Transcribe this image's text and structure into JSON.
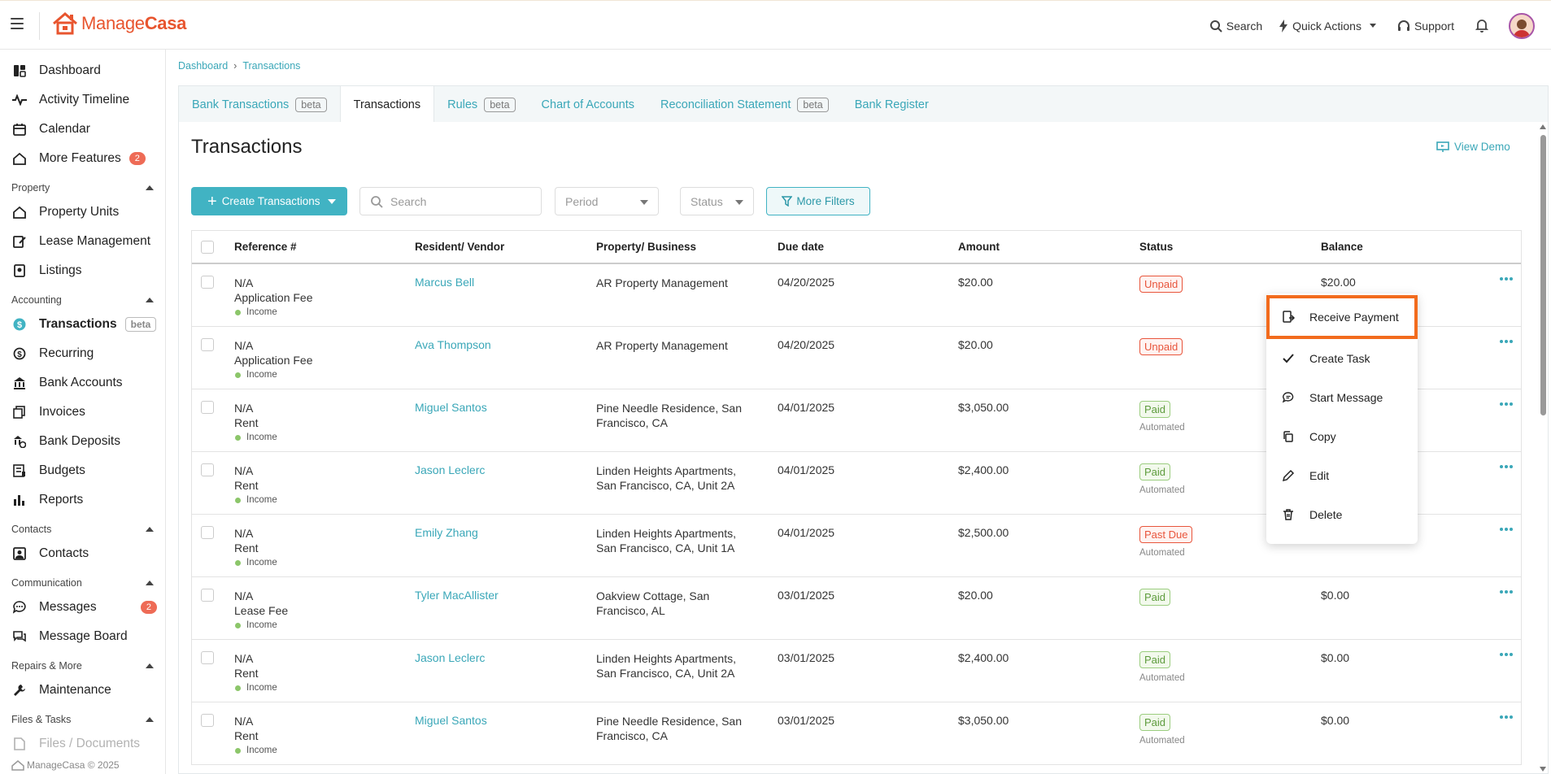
{
  "app": {
    "logo_text_a": "Manage",
    "logo_text_b": "Casa"
  },
  "topbar": {
    "search_label": "Search",
    "quick_actions_label": "Quick Actions",
    "support_label": "Support"
  },
  "sidebar": {
    "top_items": [
      {
        "label": "Dashboard",
        "icon": "dashboard-icon"
      },
      {
        "label": "Activity Timeline",
        "icon": "activity-icon"
      },
      {
        "label": "Calendar",
        "icon": "calendar-icon"
      },
      {
        "label": "More Features",
        "icon": "home-icon",
        "badge": "2"
      }
    ],
    "sections": [
      {
        "title": "Property",
        "items": [
          {
            "label": "Property Units",
            "icon": "home-icon"
          },
          {
            "label": "Lease Management",
            "icon": "edit-icon"
          },
          {
            "label": "Listings",
            "icon": "listing-icon"
          }
        ]
      },
      {
        "title": "Accounting",
        "items": [
          {
            "label": "Transactions",
            "icon": "dollar-circle-icon",
            "beta": "beta"
          },
          {
            "label": "Recurring",
            "icon": "recurring-icon"
          },
          {
            "label": "Bank Accounts",
            "icon": "bank-icon"
          },
          {
            "label": "Invoices",
            "icon": "invoice-icon"
          },
          {
            "label": "Bank Deposits",
            "icon": "deposit-icon"
          },
          {
            "label": "Budgets",
            "icon": "budget-icon"
          },
          {
            "label": "Reports",
            "icon": "reports-icon"
          }
        ]
      },
      {
        "title": "Contacts",
        "items": [
          {
            "label": "Contacts",
            "icon": "contacts-icon"
          }
        ]
      },
      {
        "title": "Communication",
        "items": [
          {
            "label": "Messages",
            "icon": "message-icon",
            "badge": "2"
          },
          {
            "label": "Message Board",
            "icon": "board-icon"
          }
        ]
      },
      {
        "title": "Repairs & More",
        "items": [
          {
            "label": "Maintenance",
            "icon": "wrench-icon"
          }
        ]
      },
      {
        "title": "Files & Tasks",
        "items": [
          {
            "label": "Files / Documents",
            "icon": "file-icon"
          }
        ]
      }
    ],
    "footer": "ManageCasa © 2025"
  },
  "breadcrumb": {
    "root": "Dashboard",
    "current": "Transactions"
  },
  "tabs": [
    {
      "label": "Bank Transactions",
      "beta": "beta"
    },
    {
      "label": "Transactions",
      "beta": ""
    },
    {
      "label": "Rules",
      "beta": "beta"
    },
    {
      "label": "Chart of Accounts",
      "beta": ""
    },
    {
      "label": "Reconciliation Statement",
      "beta": "beta"
    },
    {
      "label": "Bank Register",
      "beta": ""
    }
  ],
  "page": {
    "title": "Transactions",
    "view_demo": "View Demo",
    "create_button": "Create Transactions",
    "search_placeholder": "Search",
    "period_placeholder": "Period",
    "status_placeholder": "Status",
    "more_filters": "More Filters"
  },
  "table": {
    "headers": [
      "Reference #",
      "Resident/ Vendor",
      "Property/ Business",
      "Due date",
      "Amount",
      "Status",
      "Balance"
    ],
    "rows": [
      {
        "ref": "N/A",
        "type": "Application Fee",
        "cat": "Income",
        "who": "Marcus Bell",
        "prop": "AR Property Management",
        "prop2": "",
        "due": "04/20/2025",
        "amount": "$20.00",
        "status": "Unpaid",
        "status_kind": "unpaid",
        "auto": "",
        "balance": "$20.00"
      },
      {
        "ref": "N/A",
        "type": "Application Fee",
        "cat": "Income",
        "who": "Ava Thompson",
        "prop": "AR Property Management",
        "prop2": "",
        "due": "04/20/2025",
        "amount": "$20.00",
        "status": "Unpaid",
        "status_kind": "unpaid",
        "auto": "",
        "balance": ""
      },
      {
        "ref": "N/A",
        "type": "Rent",
        "cat": "Income",
        "who": "Miguel Santos",
        "prop": "Pine Needle Residence, San",
        "prop2": "Francisco, CA",
        "due": "04/01/2025",
        "amount": "$3,050.00",
        "status": "Paid",
        "status_kind": "paid",
        "auto": "Automated",
        "balance": ""
      },
      {
        "ref": "N/A",
        "type": "Rent",
        "cat": "Income",
        "who": "Jason Leclerc",
        "prop": "Linden Heights Apartments,",
        "prop2": "San Francisco, CA, Unit 2A",
        "due": "04/01/2025",
        "amount": "$2,400.00",
        "status": "Paid",
        "status_kind": "paid",
        "auto": "Automated",
        "balance": ""
      },
      {
        "ref": "N/A",
        "type": "Rent",
        "cat": "Income",
        "who": "Emily Zhang",
        "prop": "Linden Heights Apartments,",
        "prop2": "San Francisco, CA, Unit 1A",
        "due": "04/01/2025",
        "amount": "$2,500.00",
        "status": "Past Due",
        "status_kind": "pastdue",
        "auto": "Automated",
        "balance": ""
      },
      {
        "ref": "N/A",
        "type": "Lease Fee",
        "cat": "Income",
        "who": "Tyler MacAllister",
        "prop": "Oakview Cottage, San",
        "prop2": "Francisco, AL",
        "due": "03/01/2025",
        "amount": "$20.00",
        "status": "Paid",
        "status_kind": "paid",
        "auto": "",
        "balance": "$0.00"
      },
      {
        "ref": "N/A",
        "type": "Rent",
        "cat": "Income",
        "who": "Jason Leclerc",
        "prop": "Linden Heights Apartments,",
        "prop2": "San Francisco, CA, Unit 2A",
        "due": "03/01/2025",
        "amount": "$2,400.00",
        "status": "Paid",
        "status_kind": "paid",
        "auto": "Automated",
        "balance": "$0.00"
      },
      {
        "ref": "N/A",
        "type": "Rent",
        "cat": "Income",
        "who": "Miguel Santos",
        "prop": "Pine Needle Residence, San",
        "prop2": "Francisco, CA",
        "due": "03/01/2025",
        "amount": "$3,050.00",
        "status": "Paid",
        "status_kind": "paid",
        "auto": "Automated",
        "balance": "$0.00"
      }
    ]
  },
  "context_menu": {
    "items": [
      {
        "label": "Receive Payment",
        "icon": "receive-payment-icon",
        "highlight": true
      },
      {
        "label": "Create Task",
        "icon": "check-icon"
      },
      {
        "label": "Start Message",
        "icon": "chat-icon"
      },
      {
        "label": "Copy",
        "icon": "copy-icon"
      },
      {
        "label": "Edit",
        "icon": "pencil-icon"
      },
      {
        "label": "Delete",
        "icon": "trash-icon"
      }
    ]
  },
  "colors": {
    "brand": "#e8552f",
    "accent": "#41b3c3",
    "highlight": "#f26b1d"
  }
}
